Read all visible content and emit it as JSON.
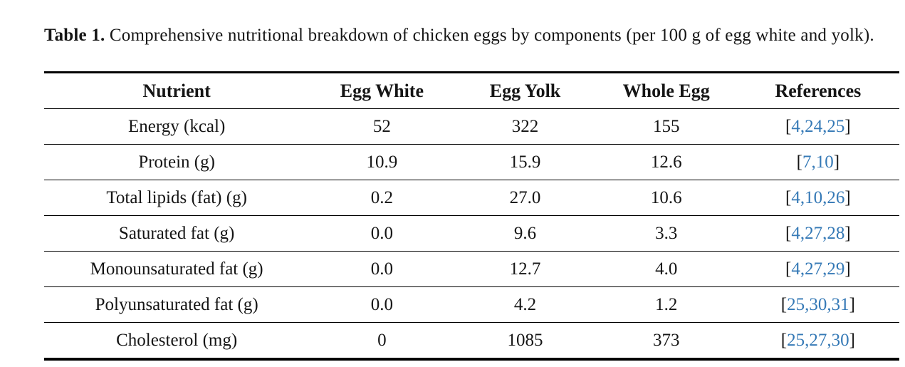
{
  "caption": {
    "label": "Table 1.",
    "text": "Comprehensive nutritional breakdown of chicken eggs by components (per 100 g of egg white and yolk)."
  },
  "table": {
    "columns": [
      "Nutrient",
      "Egg White",
      "Egg Yolk",
      "Whole Egg",
      "References"
    ],
    "rows": [
      {
        "nutrient": "Energy (kcal)",
        "egg_white": "52",
        "egg_yolk": "322",
        "whole_egg": "155",
        "references": [
          "4",
          "24",
          "25"
        ]
      },
      {
        "nutrient": "Protein (g)",
        "egg_white": "10.9",
        "egg_yolk": "15.9",
        "whole_egg": "12.6",
        "references": [
          "7",
          "10"
        ]
      },
      {
        "nutrient": "Total lipids (fat) (g)",
        "egg_white": "0.2",
        "egg_yolk": "27.0",
        "whole_egg": "10.6",
        "references": [
          "4",
          "10",
          "26"
        ]
      },
      {
        "nutrient": "Saturated fat (g)",
        "egg_white": "0.0",
        "egg_yolk": "9.6",
        "whole_egg": "3.3",
        "references": [
          "4",
          "27",
          "28"
        ]
      },
      {
        "nutrient": "Monounsaturated fat (g)",
        "egg_white": "0.0",
        "egg_yolk": "12.7",
        "whole_egg": "4.0",
        "references": [
          "4",
          "27",
          "29"
        ]
      },
      {
        "nutrient": "Polyunsaturated fat (g)",
        "egg_white": "0.0",
        "egg_yolk": "4.2",
        "whole_egg": "1.2",
        "references": [
          "25",
          "30",
          "31"
        ]
      },
      {
        "nutrient": "Cholesterol (mg)",
        "egg_white": "0",
        "egg_yolk": "1085",
        "whole_egg": "373",
        "references": [
          "25",
          "27",
          "30"
        ]
      }
    ]
  },
  "colors": {
    "link_blue": "#3579b6",
    "text": "#151515",
    "rule": "#000000"
  }
}
